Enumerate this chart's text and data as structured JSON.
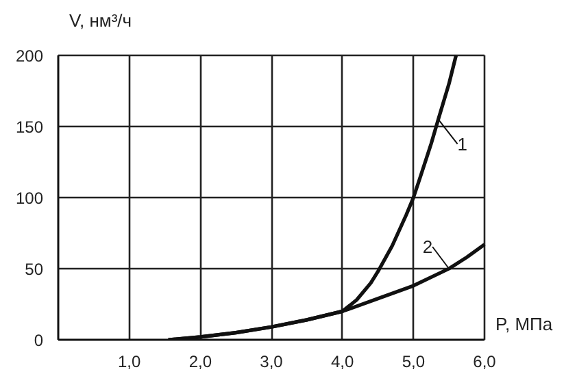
{
  "chart_data": {
    "type": "line",
    "xlabel": "P, МПа",
    "ylabel": "V, нм³/ч",
    "xlim": [
      0,
      6
    ],
    "ylim": [
      0,
      200
    ],
    "xticks": [
      {
        "value": 1,
        "label": "1,0"
      },
      {
        "value": 2,
        "label": "2,0"
      },
      {
        "value": 3,
        "label": "3,0"
      },
      {
        "value": 4,
        "label": "4,0"
      },
      {
        "value": 5,
        "label": "5,0"
      },
      {
        "value": 6,
        "label": "6,0"
      }
    ],
    "yticks": [
      0,
      50,
      100,
      150,
      200
    ],
    "grid": true,
    "marker": "none",
    "line_style": "solid",
    "series": [
      {
        "name": "1",
        "color": "#111111",
        "x": [
          1.55,
          2.0,
          2.5,
          3.0,
          3.5,
          4.0,
          4.2,
          4.4,
          4.5,
          4.7,
          4.9,
          5.0,
          5.1,
          5.25,
          5.35,
          5.5,
          5.6
        ],
        "values": [
          0,
          2,
          5,
          9,
          14,
          20,
          28,
          40,
          48,
          66,
          88,
          100,
          115,
          138,
          155,
          180,
          200
        ]
      },
      {
        "name": "2",
        "color": "#111111",
        "x": [
          1.55,
          2.0,
          2.5,
          3.0,
          3.5,
          4.0,
          4.5,
          5.0,
          5.5,
          5.75,
          6.0
        ],
        "values": [
          0,
          2,
          5,
          9,
          14,
          20,
          29,
          38,
          50,
          58,
          67
        ]
      }
    ]
  }
}
